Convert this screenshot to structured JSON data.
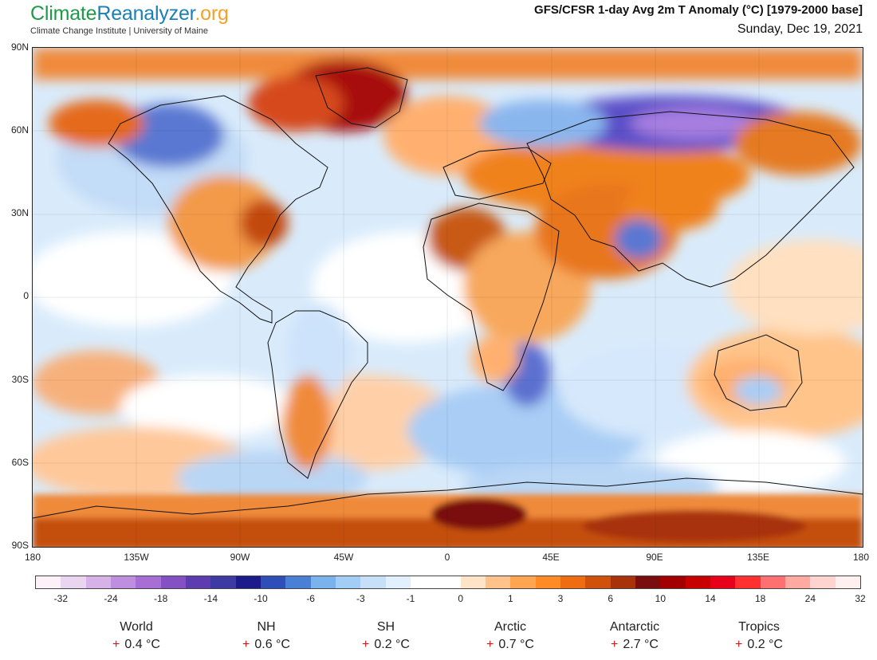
{
  "brand": {
    "logo_part1": "Climate",
    "logo_part2": "Reanalyzer",
    "logo_part3": ".org",
    "subtitle": "Climate Change Institute | University of Maine",
    "colors": {
      "climate": "#1f9a48",
      "reanalyzer": "#1b7fb8",
      "org": "#f2a12a"
    }
  },
  "title": "GFS/CFSR 1-day Avg 2m T Anomaly (°C) [1979-2000 base]",
  "date": "Sunday, Dec 19, 2021",
  "map": {
    "projection": "equirectangular",
    "lat_labels": [
      "90N",
      "60N",
      "30N",
      "0",
      "30S",
      "60S",
      "90S"
    ],
    "lon_labels": [
      "180",
      "135W",
      "90W",
      "45W",
      "0",
      "45E",
      "90E",
      "135E",
      "180"
    ]
  },
  "colorbar": {
    "colors": [
      "#fdf0f8",
      "#ead5f0",
      "#d6b2e8",
      "#c08ee0",
      "#a76fd6",
      "#8450c4",
      "#5c3cb0",
      "#3d3aa3",
      "#1c1b8c",
      "#2f4fb8",
      "#4a7fd6",
      "#7ab2ee",
      "#a2cdf6",
      "#c7e0fa",
      "#e2effd",
      "#ffffff",
      "#ffffff",
      "#ffe4c8",
      "#ffc28a",
      "#ffa552",
      "#ff8a26",
      "#f06c10",
      "#d0520a",
      "#a8330a",
      "#7a0e0e",
      "#a20000",
      "#c80000",
      "#e8001a",
      "#ff3030",
      "#ff7070",
      "#ffaaa0",
      "#ffd4d0",
      "#fff0f0"
    ],
    "labels": [
      "-32",
      "-24",
      "-18",
      "-14",
      "-10",
      "-6",
      "-3",
      "-1",
      "0",
      "1",
      "3",
      "6",
      "10",
      "14",
      "18",
      "24",
      "32"
    ]
  },
  "stats": [
    {
      "name": "World",
      "sign": "+",
      "value": "0.4 °C"
    },
    {
      "name": "NH",
      "sign": "+",
      "value": "0.6 °C"
    },
    {
      "name": "SH",
      "sign": "+",
      "value": "0.2 °C"
    },
    {
      "name": "Arctic",
      "sign": "+",
      "value": "0.7 °C"
    },
    {
      "name": "Antarctic",
      "sign": "+",
      "value": "2.7 °C"
    },
    {
      "name": "Tropics",
      "sign": "+",
      "value": "0.2 °C"
    }
  ]
}
